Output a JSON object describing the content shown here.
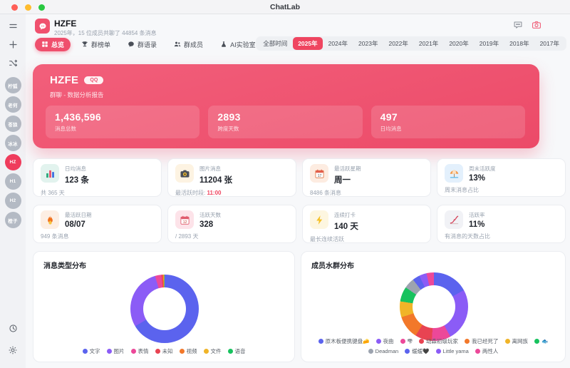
{
  "window": {
    "title": "ChatLab"
  },
  "sidebar": {
    "top_icons": [
      {
        "name": "menu-icon"
      },
      {
        "name": "add-icon"
      },
      {
        "name": "shuffle-icon"
      }
    ],
    "groups": [
      {
        "label": "柠狐",
        "active": false
      },
      {
        "label": "老何",
        "active": false
      },
      {
        "label": "苍狼",
        "active": false
      },
      {
        "label": "冰冰",
        "active": false
      },
      {
        "label": "HZ",
        "active": true
      },
      {
        "label": "H1",
        "active": false
      },
      {
        "label": "H2",
        "active": false
      },
      {
        "label": "橙子",
        "active": false
      }
    ],
    "bottom_icons": [
      {
        "name": "history-icon"
      },
      {
        "name": "settings-icon"
      }
    ]
  },
  "header": {
    "group_name": "HZFE",
    "subtitle": "2025年，15 位成员共聊了 44854 条消息",
    "action_icons": [
      "feedback-icon",
      "camera-icon"
    ]
  },
  "tabs": [
    {
      "name": "tab-overview",
      "label": "总览",
      "icon": "overview-icon",
      "active": true
    },
    {
      "name": "tab-ranking",
      "label": "群榜单",
      "icon": "ranking-icon",
      "active": false
    },
    {
      "name": "tab-quotes",
      "label": "群语录",
      "icon": "quotes-icon",
      "active": false
    },
    {
      "name": "tab-members",
      "label": "群成员",
      "icon": "members-icon",
      "active": false
    },
    {
      "name": "tab-ai-lab",
      "label": "AI实验室",
      "icon": "lab-icon",
      "active": false
    }
  ],
  "year_filter": {
    "items": [
      "全部时间",
      "2025年",
      "2024年",
      "2023年",
      "2022年",
      "2021年",
      "2020年",
      "2019年",
      "2018年",
      "2017年"
    ],
    "active": "2025年"
  },
  "hero": {
    "title": "HZFE",
    "badge": "QQ",
    "subtitle": "群聊 - 数据分析报告",
    "accent_color": "#ee5070",
    "stats": [
      {
        "value": "1,436,596",
        "label": "消息总数"
      },
      {
        "value": "2893",
        "label": "跨度天数"
      },
      {
        "value": "497",
        "label": "日均消息"
      }
    ]
  },
  "stat_cards": [
    {
      "icon": "bar-chart-icon",
      "icon_bg": "#e2f3ee",
      "label": "日均消息",
      "value": "123 条",
      "sub": "共 365 天"
    },
    {
      "icon": "camera-photo-icon",
      "icon_bg": "#fdf3e2",
      "label": "图片消息",
      "value": "11204 张",
      "sub": "最活跃时段: ",
      "sub_accent": "11:00"
    },
    {
      "icon": "calendar-icon",
      "icon_bg": "#fdece1",
      "label": "最活跃星期",
      "value": "周一",
      "sub": "8486 条消息"
    },
    {
      "icon": "beach-umbrella-icon",
      "icon_bg": "#e3f0fc",
      "label": "周末活跃度",
      "value": "13%",
      "sub": "周末消息占比"
    },
    {
      "icon": "fire-icon",
      "icon_bg": "#fdeee3",
      "label": "最活跃日期",
      "value": "08/07",
      "sub": "949 条消息"
    },
    {
      "icon": "calendar-red-icon",
      "icon_bg": "#fde3e9",
      "label": "活跃天数",
      "value": "328",
      "sub": "/ 2893 天"
    },
    {
      "icon": "lightning-icon",
      "icon_bg": "#fdf6e0",
      "label": "连续打卡",
      "value": "140 天",
      "sub": "最长连续活跃"
    },
    {
      "icon": "trend-icon",
      "icon_bg": "#f1f2f6",
      "label": "活跃率",
      "value": "11%",
      "sub": "有消息的天数占比"
    }
  ],
  "chart_data": [
    {
      "type": "pie",
      "title": "消息类型分布",
      "legend_position": "bottom",
      "series": [
        {
          "name": "文字",
          "value": 66.5,
          "color": "#5b63ee"
        },
        {
          "name": "图片",
          "value": 29,
          "color": "#8b5cf6"
        },
        {
          "name": "表情",
          "value": 3,
          "color": "#ec4899"
        },
        {
          "name": "未知",
          "value": 0.6,
          "color": "#e84352"
        },
        {
          "name": "视频",
          "value": 0.4,
          "color": "#f2782a"
        },
        {
          "name": "文件",
          "value": 0.3,
          "color": "#f0b428"
        },
        {
          "name": "语音",
          "value": 0.2,
          "color": "#17c25e"
        }
      ]
    },
    {
      "type": "pie",
      "title": "成员水群分布",
      "legend_position": "bottom",
      "series": [
        {
          "name": "原木板便携键盘🧀",
          "value": 17,
          "color": "#5b63ee"
        },
        {
          "name": "夜曲",
          "value": 25,
          "color": "#8b5cf6"
        },
        {
          "name": "雫",
          "value": 9,
          "color": "#ec4899"
        },
        {
          "name": "动森初级玩家",
          "value": 8,
          "color": "#e84352"
        },
        {
          "name": "我已经死了",
          "value": 11,
          "color": "#f2782a"
        },
        {
          "name": "离网族",
          "value": 7.5,
          "color": "#f0b428"
        },
        {
          "name": "🐟",
          "value": 7,
          "color": "#17c25e"
        },
        {
          "name": "Deadman",
          "value": 5,
          "color": "#9ca3af"
        },
        {
          "name": "缓缓🖤",
          "value": 3.5,
          "color": "#5b63ee"
        },
        {
          "name": "Little yama",
          "value": 3.5,
          "color": "#8b5cf6"
        },
        {
          "name": "两性人",
          "value": 3.5,
          "color": "#ec4899"
        }
      ]
    }
  ]
}
